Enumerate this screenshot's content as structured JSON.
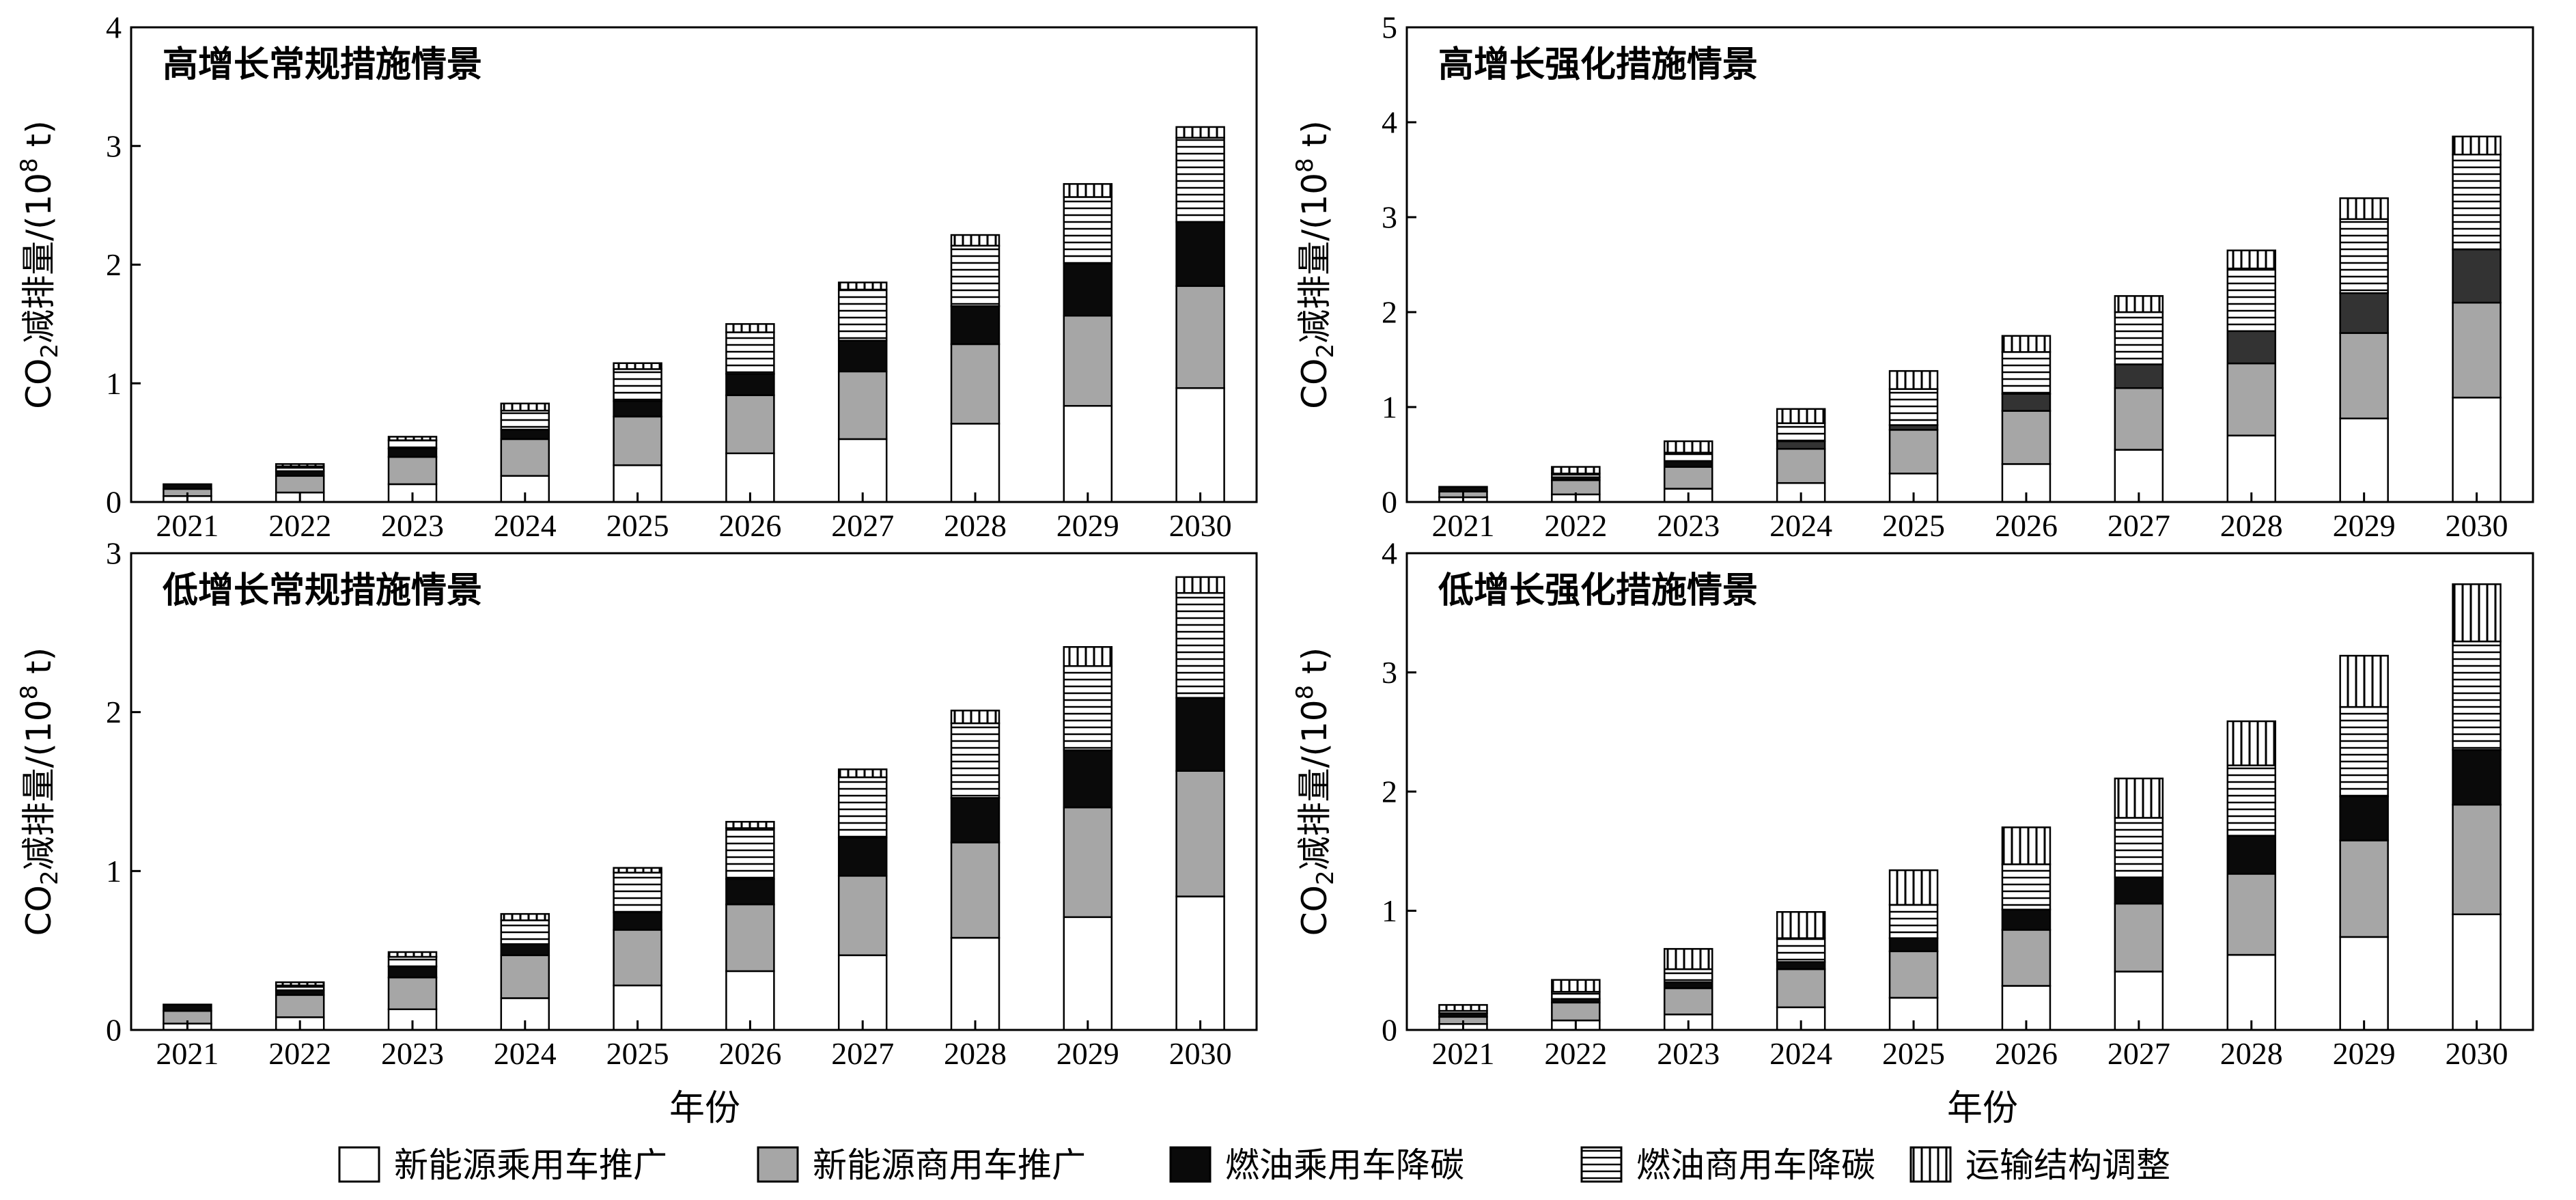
{
  "chart_data": [
    {
      "type": "bar",
      "stacked": true,
      "title": "高增长常规措施情景",
      "ylabel_prefix": "CO",
      "ylabel_sub": "2",
      "ylabel_main": "减排量/(10",
      "ylabel_sup": "8",
      "ylabel_suffix": " t)",
      "ylim": [
        0,
        4
      ],
      "yticks": [
        "0",
        "1",
        "2",
        "3",
        "4"
      ],
      "categories": [
        "2021",
        "2022",
        "2023",
        "2024",
        "2025",
        "2026",
        "2027",
        "2028",
        "2029",
        "2030"
      ],
      "series": [
        {
          "name": "新能源乘用车推广",
          "values": [
            0.05,
            0.08,
            0.15,
            0.22,
            0.31,
            0.41,
            0.53,
            0.66,
            0.81,
            0.96
          ]
        },
        {
          "name": "新能源商用车推广",
          "values": [
            0.06,
            0.14,
            0.23,
            0.31,
            0.41,
            0.49,
            0.57,
            0.67,
            0.76,
            0.86
          ]
        },
        {
          "name": "燃油乘用车降碳",
          "values": [
            0.04,
            0.04,
            0.07,
            0.08,
            0.13,
            0.18,
            0.26,
            0.32,
            0.44,
            0.54
          ]
        },
        {
          "name": "燃油商用车降碳",
          "values": [
            0.0,
            0.04,
            0.07,
            0.16,
            0.27,
            0.35,
            0.43,
            0.51,
            0.56,
            0.71
          ]
        },
        {
          "name": "运输结构调整",
          "values": [
            0.0,
            0.02,
            0.03,
            0.06,
            0.05,
            0.07,
            0.06,
            0.09,
            0.11,
            0.09
          ]
        }
      ]
    },
    {
      "type": "bar",
      "stacked": true,
      "title": "高增长强化措施情景",
      "ylabel_prefix": "CO",
      "ylabel_sub": "2",
      "ylabel_main": "减排量/(10",
      "ylabel_sup": "8",
      "ylabel_suffix": " t)",
      "ylim": [
        0,
        5
      ],
      "yticks": [
        "0",
        "1",
        "2",
        "3",
        "4",
        "5"
      ],
      "categories": [
        "2021",
        "2022",
        "2023",
        "2024",
        "2025",
        "2026",
        "2027",
        "2028",
        "2029",
        "2030"
      ],
      "series": [
        {
          "name": "新能源乘用车推广",
          "values": [
            0.05,
            0.08,
            0.14,
            0.2,
            0.3,
            0.4,
            0.55,
            0.7,
            0.88,
            1.1
          ]
        },
        {
          "name": "新能源商用车推广",
          "values": [
            0.06,
            0.15,
            0.23,
            0.36,
            0.46,
            0.56,
            0.65,
            0.76,
            0.9,
            1.0
          ]
        },
        {
          "name": "燃油乘用车降碳",
          "values": [
            0.05,
            0.03,
            0.06,
            0.08,
            0.05,
            0.18,
            0.25,
            0.34,
            0.42,
            0.56
          ]
        },
        {
          "name": "燃油商用车降碳",
          "values": [
            0.0,
            0.04,
            0.09,
            0.19,
            0.38,
            0.44,
            0.55,
            0.66,
            0.78,
            1.0
          ]
        },
        {
          "name": "运输结构调整",
          "values": [
            0.0,
            0.07,
            0.12,
            0.15,
            0.19,
            0.17,
            0.17,
            0.19,
            0.22,
            0.19
          ]
        }
      ]
    },
    {
      "type": "bar",
      "stacked": true,
      "title": "低增长常规措施情景",
      "ylabel_prefix": "CO",
      "ylabel_sub": "2",
      "ylabel_main": "减排量/(10",
      "ylabel_sup": "8",
      "ylabel_suffix": " t)",
      "ylim": [
        0,
        3
      ],
      "yticks": [
        "0",
        "1",
        "2",
        "3"
      ],
      "categories": [
        "2021",
        "2022",
        "2023",
        "2024",
        "2025",
        "2026",
        "2027",
        "2028",
        "2029",
        "2030"
      ],
      "series": [
        {
          "name": "新能源乘用车推广",
          "values": [
            0.04,
            0.08,
            0.13,
            0.2,
            0.28,
            0.37,
            0.47,
            0.58,
            0.71,
            0.84
          ]
        },
        {
          "name": "新能源商用车推广",
          "values": [
            0.08,
            0.14,
            0.2,
            0.27,
            0.35,
            0.42,
            0.5,
            0.6,
            0.69,
            0.79
          ]
        },
        {
          "name": "燃油乘用车降碳",
          "values": [
            0.04,
            0.03,
            0.07,
            0.07,
            0.11,
            0.16,
            0.24,
            0.28,
            0.36,
            0.46
          ]
        },
        {
          "name": "燃油商用车降碳",
          "values": [
            0.0,
            0.03,
            0.06,
            0.15,
            0.25,
            0.32,
            0.38,
            0.47,
            0.53,
            0.66
          ]
        },
        {
          "name": "运输结构调整",
          "values": [
            0.0,
            0.02,
            0.03,
            0.04,
            0.03,
            0.04,
            0.05,
            0.08,
            0.12,
            0.1
          ]
        }
      ]
    },
    {
      "type": "bar",
      "stacked": true,
      "title": "低增长强化措施情景",
      "ylabel_prefix": "CO",
      "ylabel_sub": "2",
      "ylabel_main": "减排量/(10",
      "ylabel_sup": "8",
      "ylabel_suffix": " t)",
      "ylim": [
        0,
        4
      ],
      "yticks": [
        "0",
        "1",
        "2",
        "3",
        "4"
      ],
      "categories": [
        "2021",
        "2022",
        "2023",
        "2024",
        "2025",
        "2026",
        "2027",
        "2028",
        "2029",
        "2030"
      ],
      "series": [
        {
          "name": "新能源乘用车推广",
          "values": [
            0.05,
            0.08,
            0.13,
            0.19,
            0.27,
            0.37,
            0.49,
            0.63,
            0.78,
            0.97
          ]
        },
        {
          "name": "新能源商用车推广",
          "values": [
            0.06,
            0.15,
            0.22,
            0.32,
            0.39,
            0.47,
            0.57,
            0.68,
            0.81,
            0.92
          ]
        },
        {
          "name": "燃油乘用车降碳",
          "values": [
            0.03,
            0.03,
            0.05,
            0.06,
            0.11,
            0.17,
            0.22,
            0.32,
            0.37,
            0.46
          ]
        },
        {
          "name": "燃油商用车降碳",
          "values": [
            0.02,
            0.06,
            0.11,
            0.2,
            0.28,
            0.38,
            0.5,
            0.59,
            0.75,
            0.91
          ]
        },
        {
          "name": "运输结构调整",
          "values": [
            0.05,
            0.1,
            0.17,
            0.22,
            0.29,
            0.31,
            0.33,
            0.37,
            0.43,
            0.48
          ]
        }
      ]
    }
  ],
  "xlabel": "年份",
  "legend": {
    "position": "bottom",
    "items": [
      {
        "name": "新能源乘用车推广",
        "pattern": "white"
      },
      {
        "name": "新能源商用车推广",
        "pattern": "gray"
      },
      {
        "name": "燃油乘用车降碳",
        "pattern": "black"
      },
      {
        "name": "燃油商用车降碳",
        "pattern": "horizontal-lines"
      },
      {
        "name": "运输结构调整",
        "pattern": "vertical-lines"
      }
    ]
  },
  "colors": {
    "gray": "#a6a6a6",
    "black": "#0a0a0a",
    "dark_gray": "#333333",
    "white": "#ffffff"
  }
}
